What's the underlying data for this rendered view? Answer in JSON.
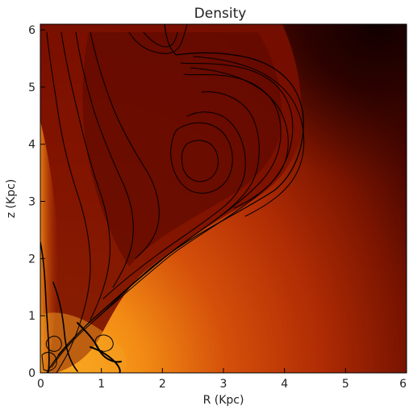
{
  "chart_data": {
    "type": "heatmap",
    "title": "Density",
    "xlabel": "R (Kpc)",
    "ylabel": "z (Kpc)",
    "xlim": [
      0,
      6
    ],
    "ylim": [
      0,
      6.1
    ],
    "x_ticks": [
      "0",
      "1",
      "2",
      "3",
      "4",
      "5",
      "6"
    ],
    "y_ticks": [
      "0",
      "1",
      "2",
      "3",
      "4",
      "5",
      "6"
    ],
    "colormap": [
      "#0d0000",
      "#3a0300",
      "#6a1000",
      "#9a2000",
      "#c43808",
      "#e8620f",
      "#f89018",
      "#ffb020"
    ],
    "overlay": "contour lines",
    "contour_color": "#000000",
    "grid": false
  }
}
